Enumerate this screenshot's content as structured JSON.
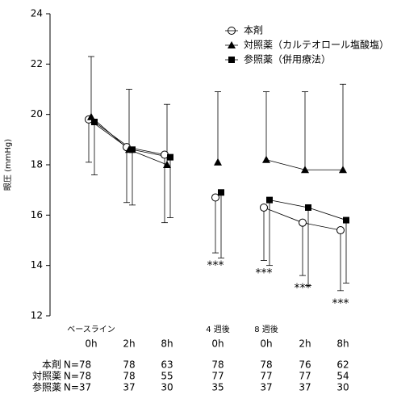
{
  "chart_data": {
    "type": "line",
    "y_label": "眼圧 (mmHg)",
    "ylim": [
      12,
      24
    ],
    "yticks": [
      12,
      14,
      16,
      18,
      20,
      22,
      24
    ],
    "groups": [
      {
        "label": "ベースライン",
        "times": [
          "0h",
          "2h",
          "8h"
        ]
      },
      {
        "label": "4 週後",
        "times": [
          "0h"
        ]
      },
      {
        "label": "8 週後",
        "times": [
          "0h",
          "2h",
          "8h"
        ]
      }
    ],
    "series": [
      {
        "name": "本剤",
        "marker": "circle",
        "color": "#000",
        "values": [
          19.8,
          18.7,
          18.4,
          16.7,
          16.3,
          15.7,
          15.4
        ],
        "errors": [
          1.7,
          2.2,
          2.7,
          2.2,
          2.1,
          2.1,
          2.4
        ],
        "error_direction": "down"
      },
      {
        "name": "対照薬（カルテオロール塩酸塩）",
        "marker": "triangle",
        "color": "#000",
        "values": [
          19.9,
          18.6,
          18.0,
          18.1,
          18.2,
          17.8,
          17.8
        ],
        "errors": [
          2.4,
          2.4,
          2.4,
          2.8,
          2.7,
          3.1,
          3.4
        ],
        "error_direction": "up"
      },
      {
        "name": "参照薬（併用療法）",
        "marker": "square",
        "color": "#000",
        "values": [
          19.7,
          18.6,
          18.3,
          16.9,
          16.6,
          16.3,
          15.8
        ],
        "errors": [
          2.1,
          2.2,
          2.4,
          2.6,
          2.6,
          3.1,
          2.5
        ],
        "error_direction": "down"
      }
    ],
    "annotations": [
      {
        "text": "***",
        "point": 3
      },
      {
        "text": "***",
        "point": 4
      },
      {
        "text": "***",
        "point": 5
      },
      {
        "text": "***",
        "point": 6
      }
    ],
    "n_table": [
      {
        "label": "本剤",
        "cells": [
          "N=78",
          78,
          63,
          78,
          78,
          76,
          62
        ]
      },
      {
        "label": "対照薬",
        "cells": [
          "N=78",
          78,
          55,
          77,
          77,
          77,
          54
        ]
      },
      {
        "label": "参照薬",
        "cells": [
          "N=37",
          37,
          30,
          35,
          37,
          37,
          30
        ]
      }
    ]
  }
}
